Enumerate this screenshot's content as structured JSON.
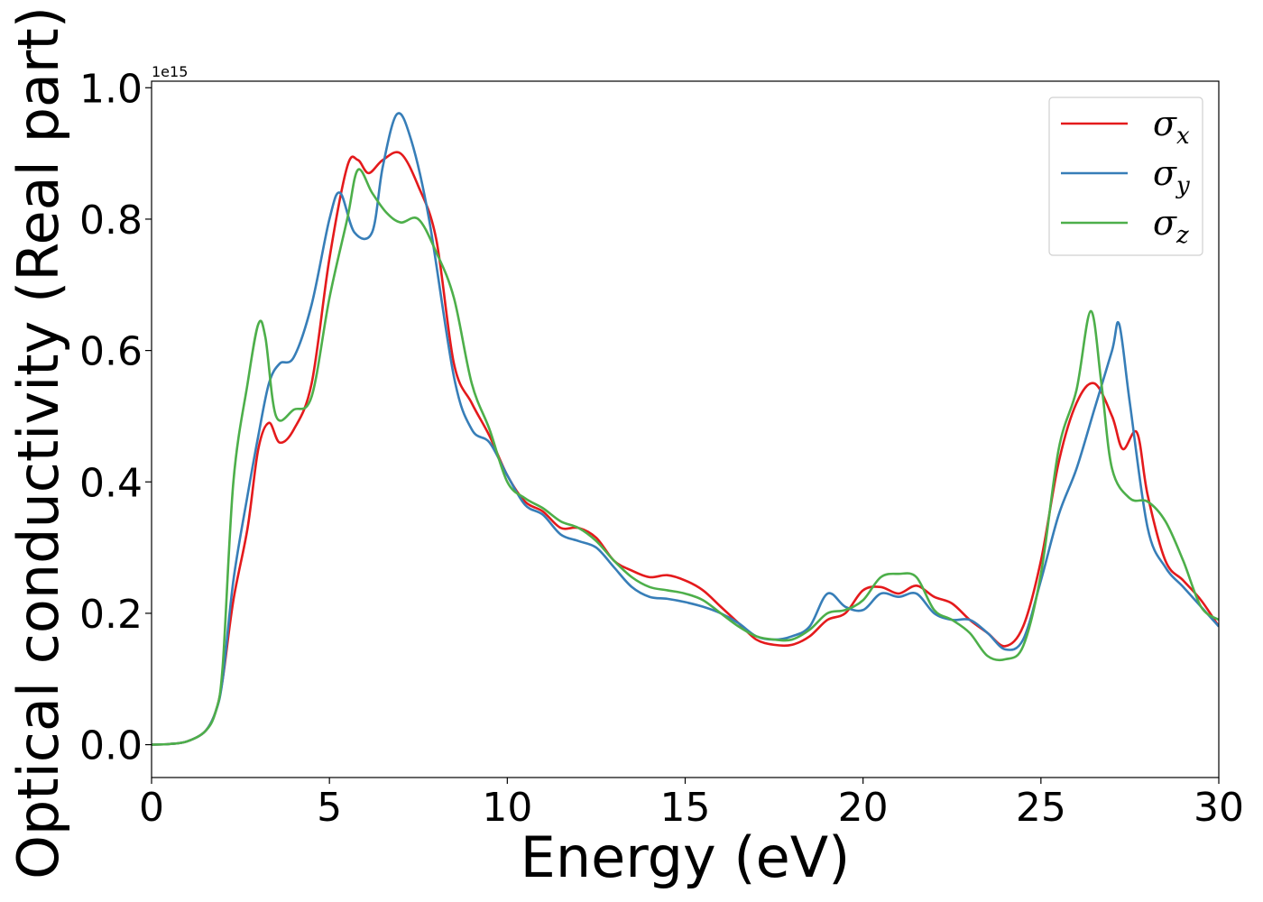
{
  "chart_data": {
    "type": "line",
    "xlabel": "Energy (eV)",
    "ylabel": "Optical conductivity (Real part)",
    "y_offset_label": "1e15",
    "xlim": [
      0,
      30
    ],
    "ylim": [
      -0.05,
      1.01
    ],
    "xticks": [
      0,
      5,
      10,
      15,
      20,
      25,
      30
    ],
    "xtick_labels": [
      "0",
      "5",
      "10",
      "15",
      "20",
      "25",
      "30"
    ],
    "yticks": [
      0.0,
      0.2,
      0.4,
      0.6,
      0.8,
      1.0
    ],
    "ytick_labels": [
      "0.0",
      "0.2",
      "0.4",
      "0.6",
      "0.8",
      "1.0"
    ],
    "grid": false,
    "legend_position": "top-right",
    "series": [
      {
        "name": "σx",
        "legend_symbol": "σ",
        "legend_subscript": "x",
        "color": "#e41a1c",
        "points": [
          [
            0,
            0
          ],
          [
            0.5,
            0.001
          ],
          [
            1,
            0.005
          ],
          [
            1.5,
            0.02
          ],
          [
            1.8,
            0.05
          ],
          [
            2,
            0.1
          ],
          [
            2.3,
            0.22
          ],
          [
            2.7,
            0.33
          ],
          [
            3,
            0.45
          ],
          [
            3.3,
            0.49
          ],
          [
            3.6,
            0.46
          ],
          [
            4,
            0.48
          ],
          [
            4.5,
            0.55
          ],
          [
            5,
            0.74
          ],
          [
            5.5,
            0.88
          ],
          [
            5.8,
            0.89
          ],
          [
            6.1,
            0.87
          ],
          [
            6.5,
            0.89
          ],
          [
            7,
            0.9
          ],
          [
            7.5,
            0.85
          ],
          [
            8,
            0.77
          ],
          [
            8.5,
            0.58
          ],
          [
            9,
            0.52
          ],
          [
            9.5,
            0.47
          ],
          [
            10,
            0.41
          ],
          [
            10.5,
            0.37
          ],
          [
            11,
            0.355
          ],
          [
            11.5,
            0.33
          ],
          [
            12,
            0.33
          ],
          [
            12.5,
            0.315
          ],
          [
            13,
            0.28
          ],
          [
            13.5,
            0.265
          ],
          [
            14,
            0.255
          ],
          [
            14.5,
            0.258
          ],
          [
            15,
            0.25
          ],
          [
            15.5,
            0.235
          ],
          [
            16,
            0.21
          ],
          [
            16.5,
            0.185
          ],
          [
            17,
            0.16
          ],
          [
            17.5,
            0.152
          ],
          [
            18,
            0.152
          ],
          [
            18.5,
            0.165
          ],
          [
            19,
            0.19
          ],
          [
            19.5,
            0.2
          ],
          [
            20,
            0.235
          ],
          [
            20.5,
            0.24
          ],
          [
            21,
            0.23
          ],
          [
            21.5,
            0.242
          ],
          [
            22,
            0.225
          ],
          [
            22.5,
            0.215
          ],
          [
            23,
            0.19
          ],
          [
            23.5,
            0.17
          ],
          [
            24,
            0.15
          ],
          [
            24.5,
            0.18
          ],
          [
            25,
            0.28
          ],
          [
            25.5,
            0.43
          ],
          [
            26,
            0.52
          ],
          [
            26.5,
            0.55
          ],
          [
            27,
            0.5
          ],
          [
            27.3,
            0.45
          ],
          [
            27.7,
            0.475
          ],
          [
            28,
            0.38
          ],
          [
            28.5,
            0.28
          ],
          [
            29,
            0.25
          ],
          [
            29.5,
            0.22
          ],
          [
            30,
            0.18
          ]
        ]
      },
      {
        "name": "σy",
        "legend_symbol": "σ",
        "legend_subscript": "y",
        "color": "#377eb8",
        "points": [
          [
            0,
            0
          ],
          [
            0.5,
            0.001
          ],
          [
            1,
            0.005
          ],
          [
            1.5,
            0.02
          ],
          [
            1.8,
            0.05
          ],
          [
            2,
            0.1
          ],
          [
            2.3,
            0.25
          ],
          [
            2.7,
            0.38
          ],
          [
            3,
            0.47
          ],
          [
            3.3,
            0.55
          ],
          [
            3.6,
            0.58
          ],
          [
            4,
            0.59
          ],
          [
            4.5,
            0.67
          ],
          [
            5,
            0.8
          ],
          [
            5.3,
            0.84
          ],
          [
            5.7,
            0.78
          ],
          [
            6.2,
            0.78
          ],
          [
            6.5,
            0.88
          ],
          [
            6.9,
            0.96
          ],
          [
            7.3,
            0.92
          ],
          [
            7.8,
            0.8
          ],
          [
            8.5,
            0.56
          ],
          [
            9,
            0.48
          ],
          [
            9.5,
            0.46
          ],
          [
            10,
            0.41
          ],
          [
            10.5,
            0.365
          ],
          [
            11,
            0.35
          ],
          [
            11.5,
            0.32
          ],
          [
            12,
            0.31
          ],
          [
            12.5,
            0.3
          ],
          [
            13,
            0.27
          ],
          [
            13.5,
            0.24
          ],
          [
            14,
            0.225
          ],
          [
            14.5,
            0.222
          ],
          [
            15,
            0.217
          ],
          [
            15.5,
            0.21
          ],
          [
            16,
            0.2
          ],
          [
            16.5,
            0.185
          ],
          [
            17,
            0.165
          ],
          [
            17.5,
            0.16
          ],
          [
            18,
            0.165
          ],
          [
            18.5,
            0.18
          ],
          [
            19,
            0.23
          ],
          [
            19.5,
            0.21
          ],
          [
            20,
            0.205
          ],
          [
            20.5,
            0.23
          ],
          [
            21,
            0.225
          ],
          [
            21.5,
            0.23
          ],
          [
            22,
            0.2
          ],
          [
            22.5,
            0.19
          ],
          [
            23,
            0.19
          ],
          [
            23.5,
            0.17
          ],
          [
            24,
            0.145
          ],
          [
            24.5,
            0.16
          ],
          [
            25,
            0.25
          ],
          [
            25.5,
            0.35
          ],
          [
            26,
            0.42
          ],
          [
            26.5,
            0.51
          ],
          [
            27,
            0.6
          ],
          [
            27.2,
            0.64
          ],
          [
            27.5,
            0.52
          ],
          [
            28,
            0.33
          ],
          [
            28.5,
            0.27
          ],
          [
            29,
            0.24
          ],
          [
            29.5,
            0.21
          ],
          [
            30,
            0.18
          ]
        ]
      },
      {
        "name": "σz",
        "legend_symbol": "σ",
        "legend_subscript": "z",
        "color": "#4daf4a",
        "points": [
          [
            0,
            0
          ],
          [
            0.5,
            0.001
          ],
          [
            1,
            0.005
          ],
          [
            1.5,
            0.02
          ],
          [
            1.8,
            0.05
          ],
          [
            2,
            0.12
          ],
          [
            2.3,
            0.4
          ],
          [
            2.7,
            0.55
          ],
          [
            3,
            0.64
          ],
          [
            3.2,
            0.62
          ],
          [
            3.5,
            0.5
          ],
          [
            4,
            0.51
          ],
          [
            4.5,
            0.53
          ],
          [
            5,
            0.68
          ],
          [
            5.5,
            0.8
          ],
          [
            5.8,
            0.875
          ],
          [
            6.2,
            0.84
          ],
          [
            6.6,
            0.81
          ],
          [
            7,
            0.795
          ],
          [
            7.5,
            0.8
          ],
          [
            8,
            0.75
          ],
          [
            8.5,
            0.68
          ],
          [
            9,
            0.55
          ],
          [
            9.5,
            0.48
          ],
          [
            10,
            0.4
          ],
          [
            10.5,
            0.375
          ],
          [
            11,
            0.36
          ],
          [
            11.5,
            0.34
          ],
          [
            12,
            0.33
          ],
          [
            12.5,
            0.31
          ],
          [
            13,
            0.28
          ],
          [
            13.5,
            0.255
          ],
          [
            14,
            0.24
          ],
          [
            14.5,
            0.235
          ],
          [
            15,
            0.23
          ],
          [
            15.5,
            0.22
          ],
          [
            16,
            0.2
          ],
          [
            16.5,
            0.18
          ],
          [
            17,
            0.165
          ],
          [
            17.5,
            0.16
          ],
          [
            18,
            0.16
          ],
          [
            18.5,
            0.175
          ],
          [
            19,
            0.2
          ],
          [
            19.5,
            0.205
          ],
          [
            20,
            0.22
          ],
          [
            20.5,
            0.255
          ],
          [
            21,
            0.26
          ],
          [
            21.5,
            0.255
          ],
          [
            22,
            0.205
          ],
          [
            22.5,
            0.19
          ],
          [
            23,
            0.17
          ],
          [
            23.5,
            0.135
          ],
          [
            24,
            0.13
          ],
          [
            24.5,
            0.15
          ],
          [
            25,
            0.26
          ],
          [
            25.5,
            0.45
          ],
          [
            26,
            0.54
          ],
          [
            26.4,
            0.66
          ],
          [
            26.7,
            0.55
          ],
          [
            27,
            0.42
          ],
          [
            27.5,
            0.375
          ],
          [
            28,
            0.37
          ],
          [
            28.5,
            0.34
          ],
          [
            29,
            0.28
          ],
          [
            29.5,
            0.21
          ],
          [
            30,
            0.19
          ]
        ]
      }
    ]
  }
}
